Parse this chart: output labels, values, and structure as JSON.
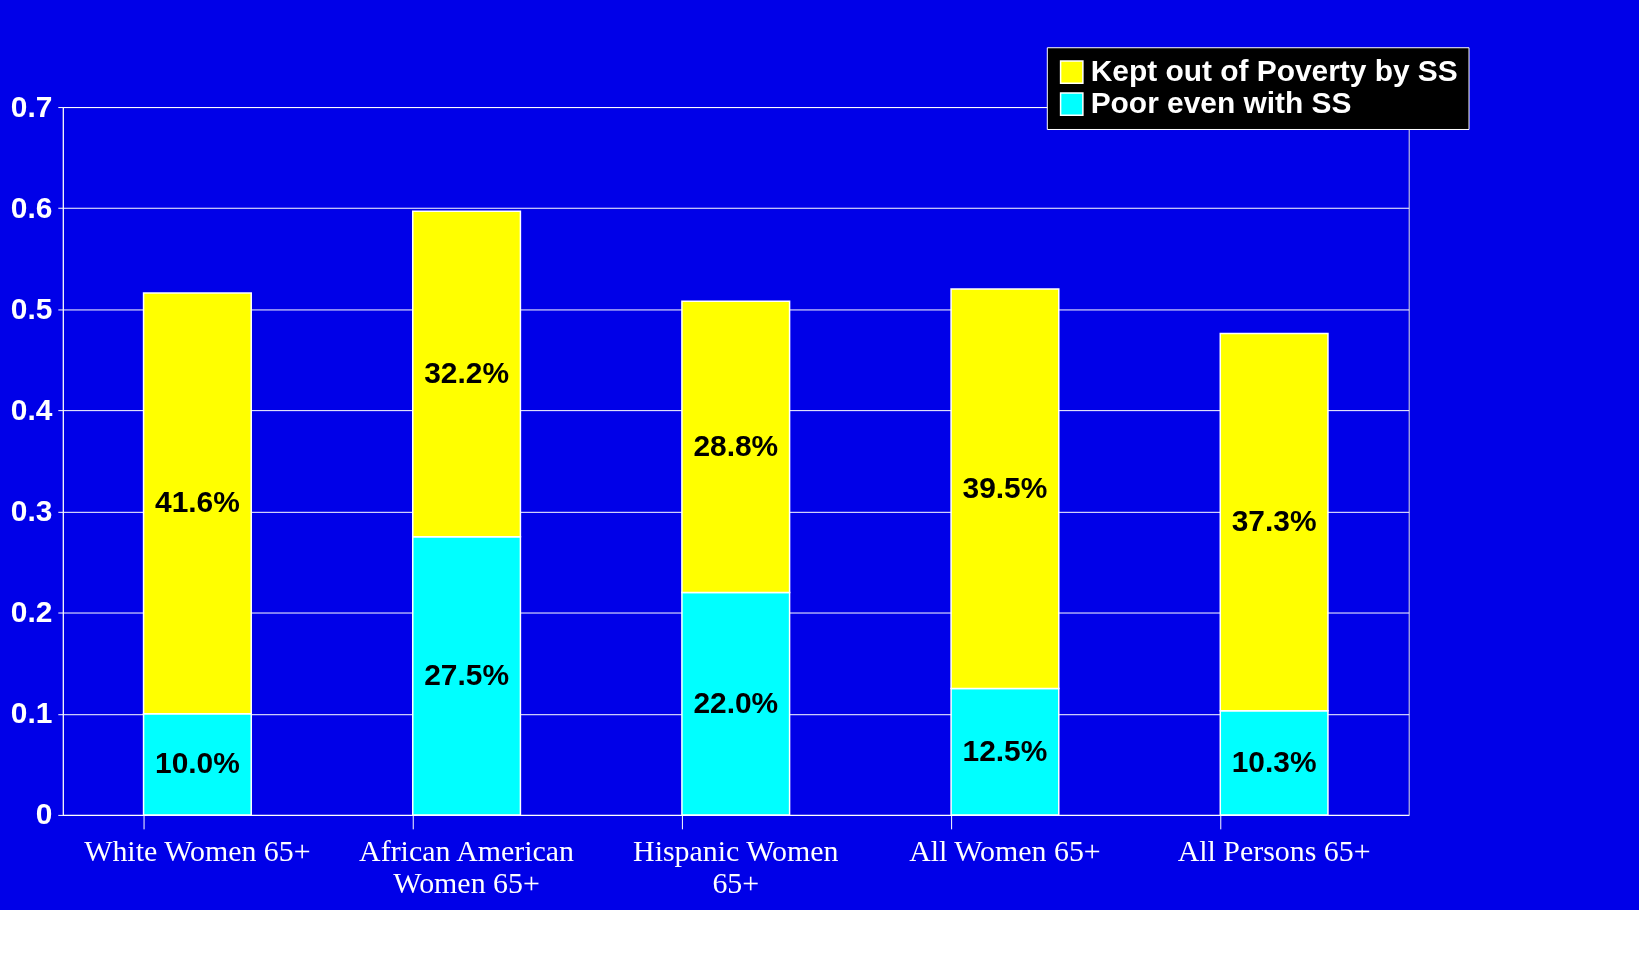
{
  "chart_data": {
    "type": "bar",
    "stacked": true,
    "categories": [
      "White Women 65+",
      "African American Women 65+",
      "Hispanic Women 65+",
      "All Women 65+",
      "All Persons 65+"
    ],
    "series": [
      {
        "name": "Poor even with SS",
        "color": "#00ffff",
        "values": [
          0.1,
          0.275,
          0.22,
          0.125,
          0.103
        ],
        "value_labels": [
          "10.0%",
          "27.5%",
          "22.0%",
          "12.5%",
          "10.3%"
        ]
      },
      {
        "name": "Kept out of Poverty by SS",
        "color": "#ffff00",
        "values": [
          0.416,
          0.322,
          0.288,
          0.395,
          0.373
        ],
        "value_labels": [
          "41.6%",
          "32.2%",
          "28.8%",
          "39.5%",
          "37.3%"
        ]
      }
    ],
    "ylim": [
      0,
      0.7
    ],
    "yticks": [
      0,
      0.1,
      0.2,
      0.3,
      0.4,
      0.5,
      0.6,
      0.7
    ],
    "grid": "y",
    "legend": "top right"
  }
}
